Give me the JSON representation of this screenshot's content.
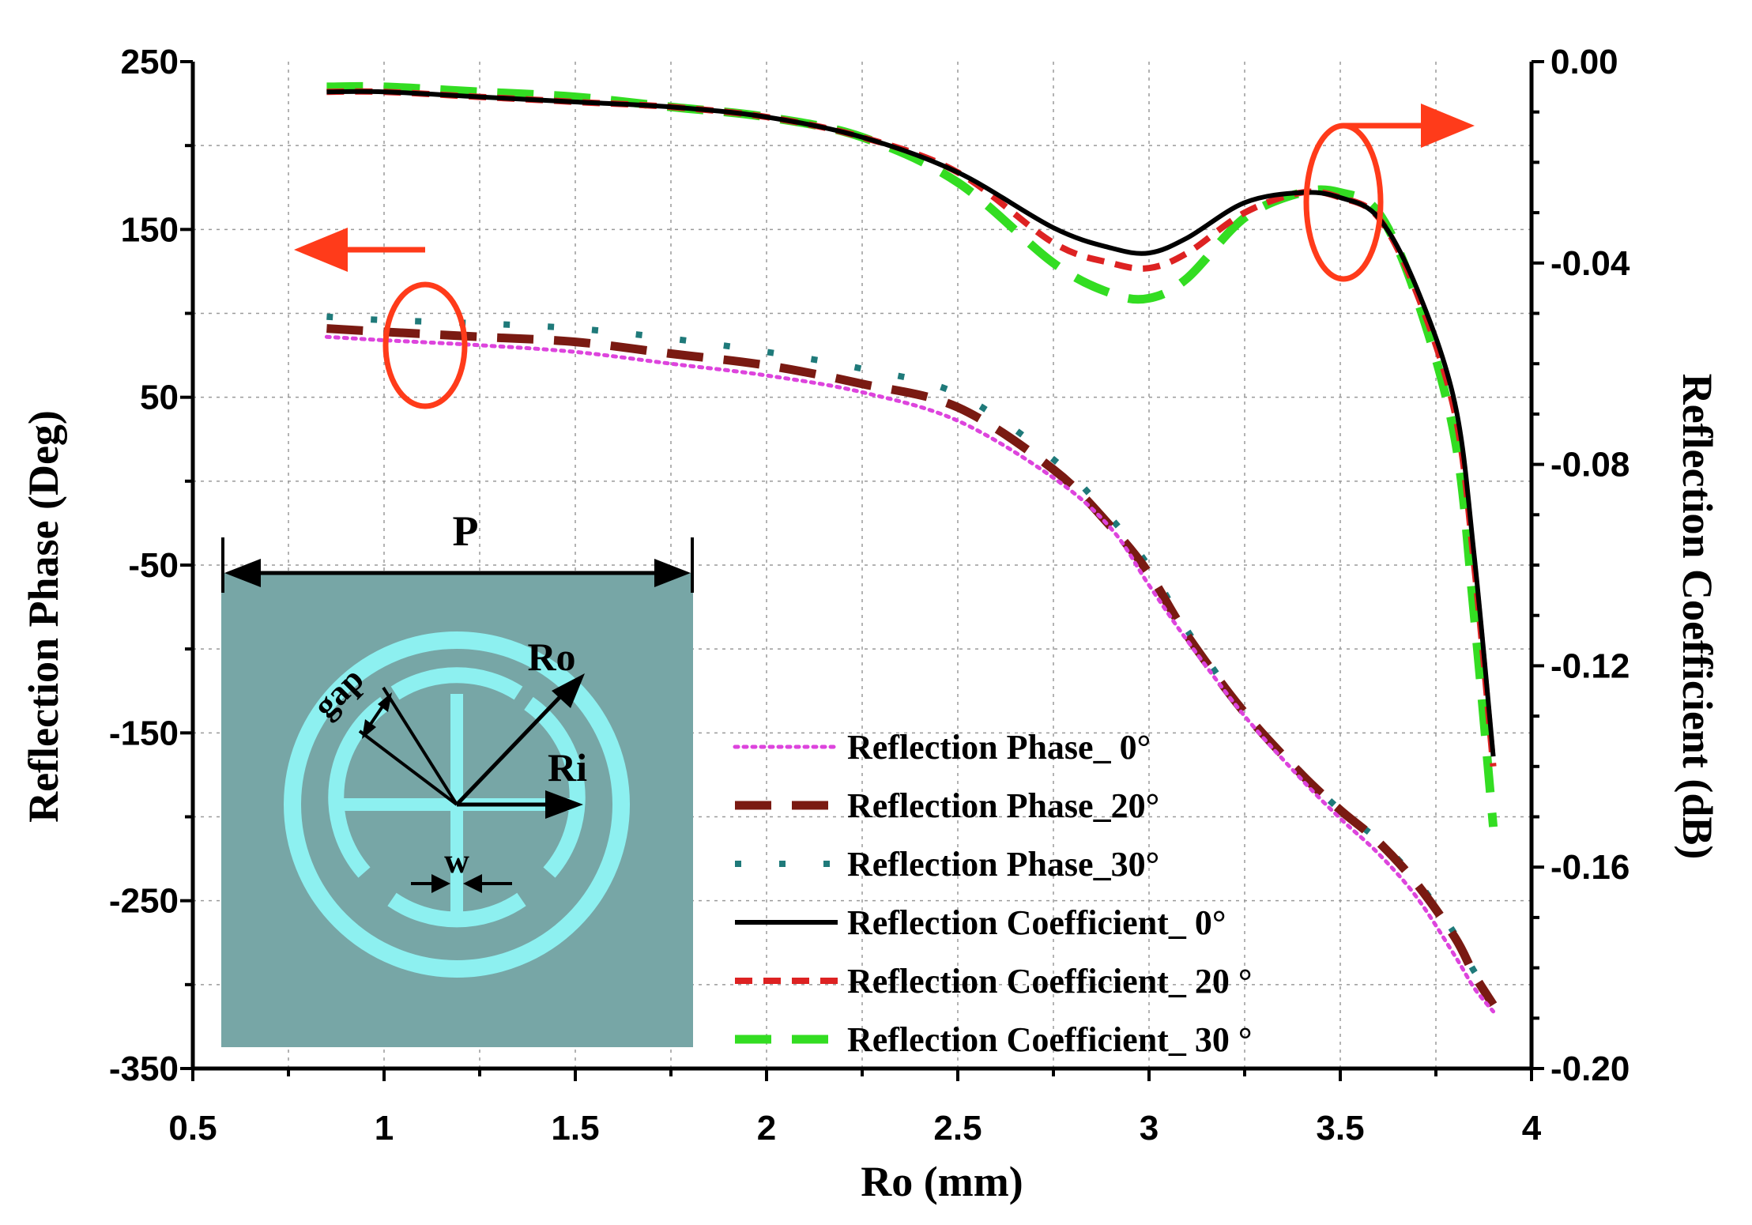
{
  "chart_data": {
    "type": "line",
    "title": "",
    "xlabel": "Ro (mm)",
    "ylabel_left": "Reflection Phase (Deg)",
    "ylabel_right": "Reflection Coefficient (dB)",
    "xlim": [
      0.5,
      4
    ],
    "ylim_left": [
      -350,
      250
    ],
    "ylim_right": [
      -0.2,
      0.0
    ],
    "x_ticks": [
      "0.5",
      "1",
      "1.5",
      "2",
      "2.5",
      "3",
      "3.5",
      "4"
    ],
    "x_tick_values": [
      0.5,
      1,
      1.5,
      2,
      2.5,
      3,
      3.5,
      4
    ],
    "y_left_ticks": [
      "250",
      "150",
      "50",
      "-50",
      "-150",
      "-250",
      "-350"
    ],
    "y_left_tick_values": [
      250,
      150,
      50,
      -50,
      -150,
      -250,
      -350
    ],
    "y_right_ticks": [
      "0.00",
      "-0.04",
      "-0.08",
      "-0.12",
      "-0.16",
      "-0.20"
    ],
    "y_right_tick_values": [
      0.0,
      -0.04,
      -0.08,
      -0.12,
      -0.16,
      -0.2
    ],
    "grid": true,
    "x": [
      0.85,
      1.0,
      1.25,
      1.5,
      1.75,
      2.0,
      2.25,
      2.5,
      2.75,
      2.9,
      3.0,
      3.1,
      3.25,
      3.4,
      3.5,
      3.6,
      3.7,
      3.8,
      3.85,
      3.9
    ],
    "series": [
      {
        "name": "Reflection Phase_ 0°",
        "axis": "left",
        "color": "#dd44dd",
        "style": "dotted",
        "values": [
          86,
          84,
          81,
          77,
          70,
          63,
          53,
          36,
          2,
          -28,
          -62,
          -95,
          -140,
          -178,
          -201,
          -222,
          -248,
          -283,
          -302,
          -316
        ]
      },
      {
        "name": "Reflection Phase_20°",
        "axis": "left",
        "color": "#7a1a12",
        "style": "longdash",
        "values": [
          91,
          89,
          86,
          83,
          76,
          69,
          58,
          44,
          7,
          -27,
          -55,
          -92,
          -138,
          -175,
          -196,
          -215,
          -240,
          -272,
          -294,
          -312
        ]
      },
      {
        "name": "Reflection Phase_30°",
        "axis": "left",
        "color": "#1f7a7a",
        "style": "dots",
        "values": [
          98,
          96,
          94,
          91,
          85,
          77,
          67,
          52,
          13,
          -22,
          -51,
          -89,
          -137,
          -174,
          -196,
          -214,
          -238,
          -270,
          -292,
          -306
        ]
      },
      {
        "name": "Reflection Coefficient_ 0°",
        "axis": "right",
        "color": "#000000",
        "style": "solid",
        "values": [
          -0.006,
          -0.006,
          -0.007,
          -0.008,
          -0.009,
          -0.011,
          -0.015,
          -0.022,
          -0.033,
          -0.037,
          -0.038,
          -0.035,
          -0.028,
          -0.026,
          -0.027,
          -0.031,
          -0.045,
          -0.068,
          -0.098,
          -0.138
        ]
      },
      {
        "name": "Reflection Coefficient_ 20 °",
        "axis": "right",
        "color": "#dd2222",
        "style": "shortdash",
        "values": [
          -0.006,
          -0.006,
          -0.007,
          -0.008,
          -0.009,
          -0.011,
          -0.015,
          -0.022,
          -0.036,
          -0.04,
          -0.041,
          -0.038,
          -0.03,
          -0.026,
          -0.027,
          -0.031,
          -0.046,
          -0.07,
          -0.1,
          -0.14
        ]
      },
      {
        "name": "Reflection Coefficient_ 30 °",
        "axis": "right",
        "color": "#33dd22",
        "style": "longdash",
        "values": [
          -0.005,
          -0.005,
          -0.006,
          -0.007,
          -0.009,
          -0.011,
          -0.015,
          -0.024,
          -0.04,
          -0.046,
          -0.047,
          -0.043,
          -0.031,
          -0.026,
          -0.026,
          -0.03,
          -0.047,
          -0.075,
          -0.11,
          -0.152
        ]
      }
    ],
    "legend_position": "lower-right"
  },
  "inset": {
    "label_p": "P",
    "label_ro": "Ro",
    "label_ri": "Ri",
    "label_gap": "gap",
    "label_w": "w",
    "background_color": "#77a6a6",
    "ring_color": "#8df0f0"
  },
  "annotations": {
    "arrow_color": "#ff3b1a"
  }
}
